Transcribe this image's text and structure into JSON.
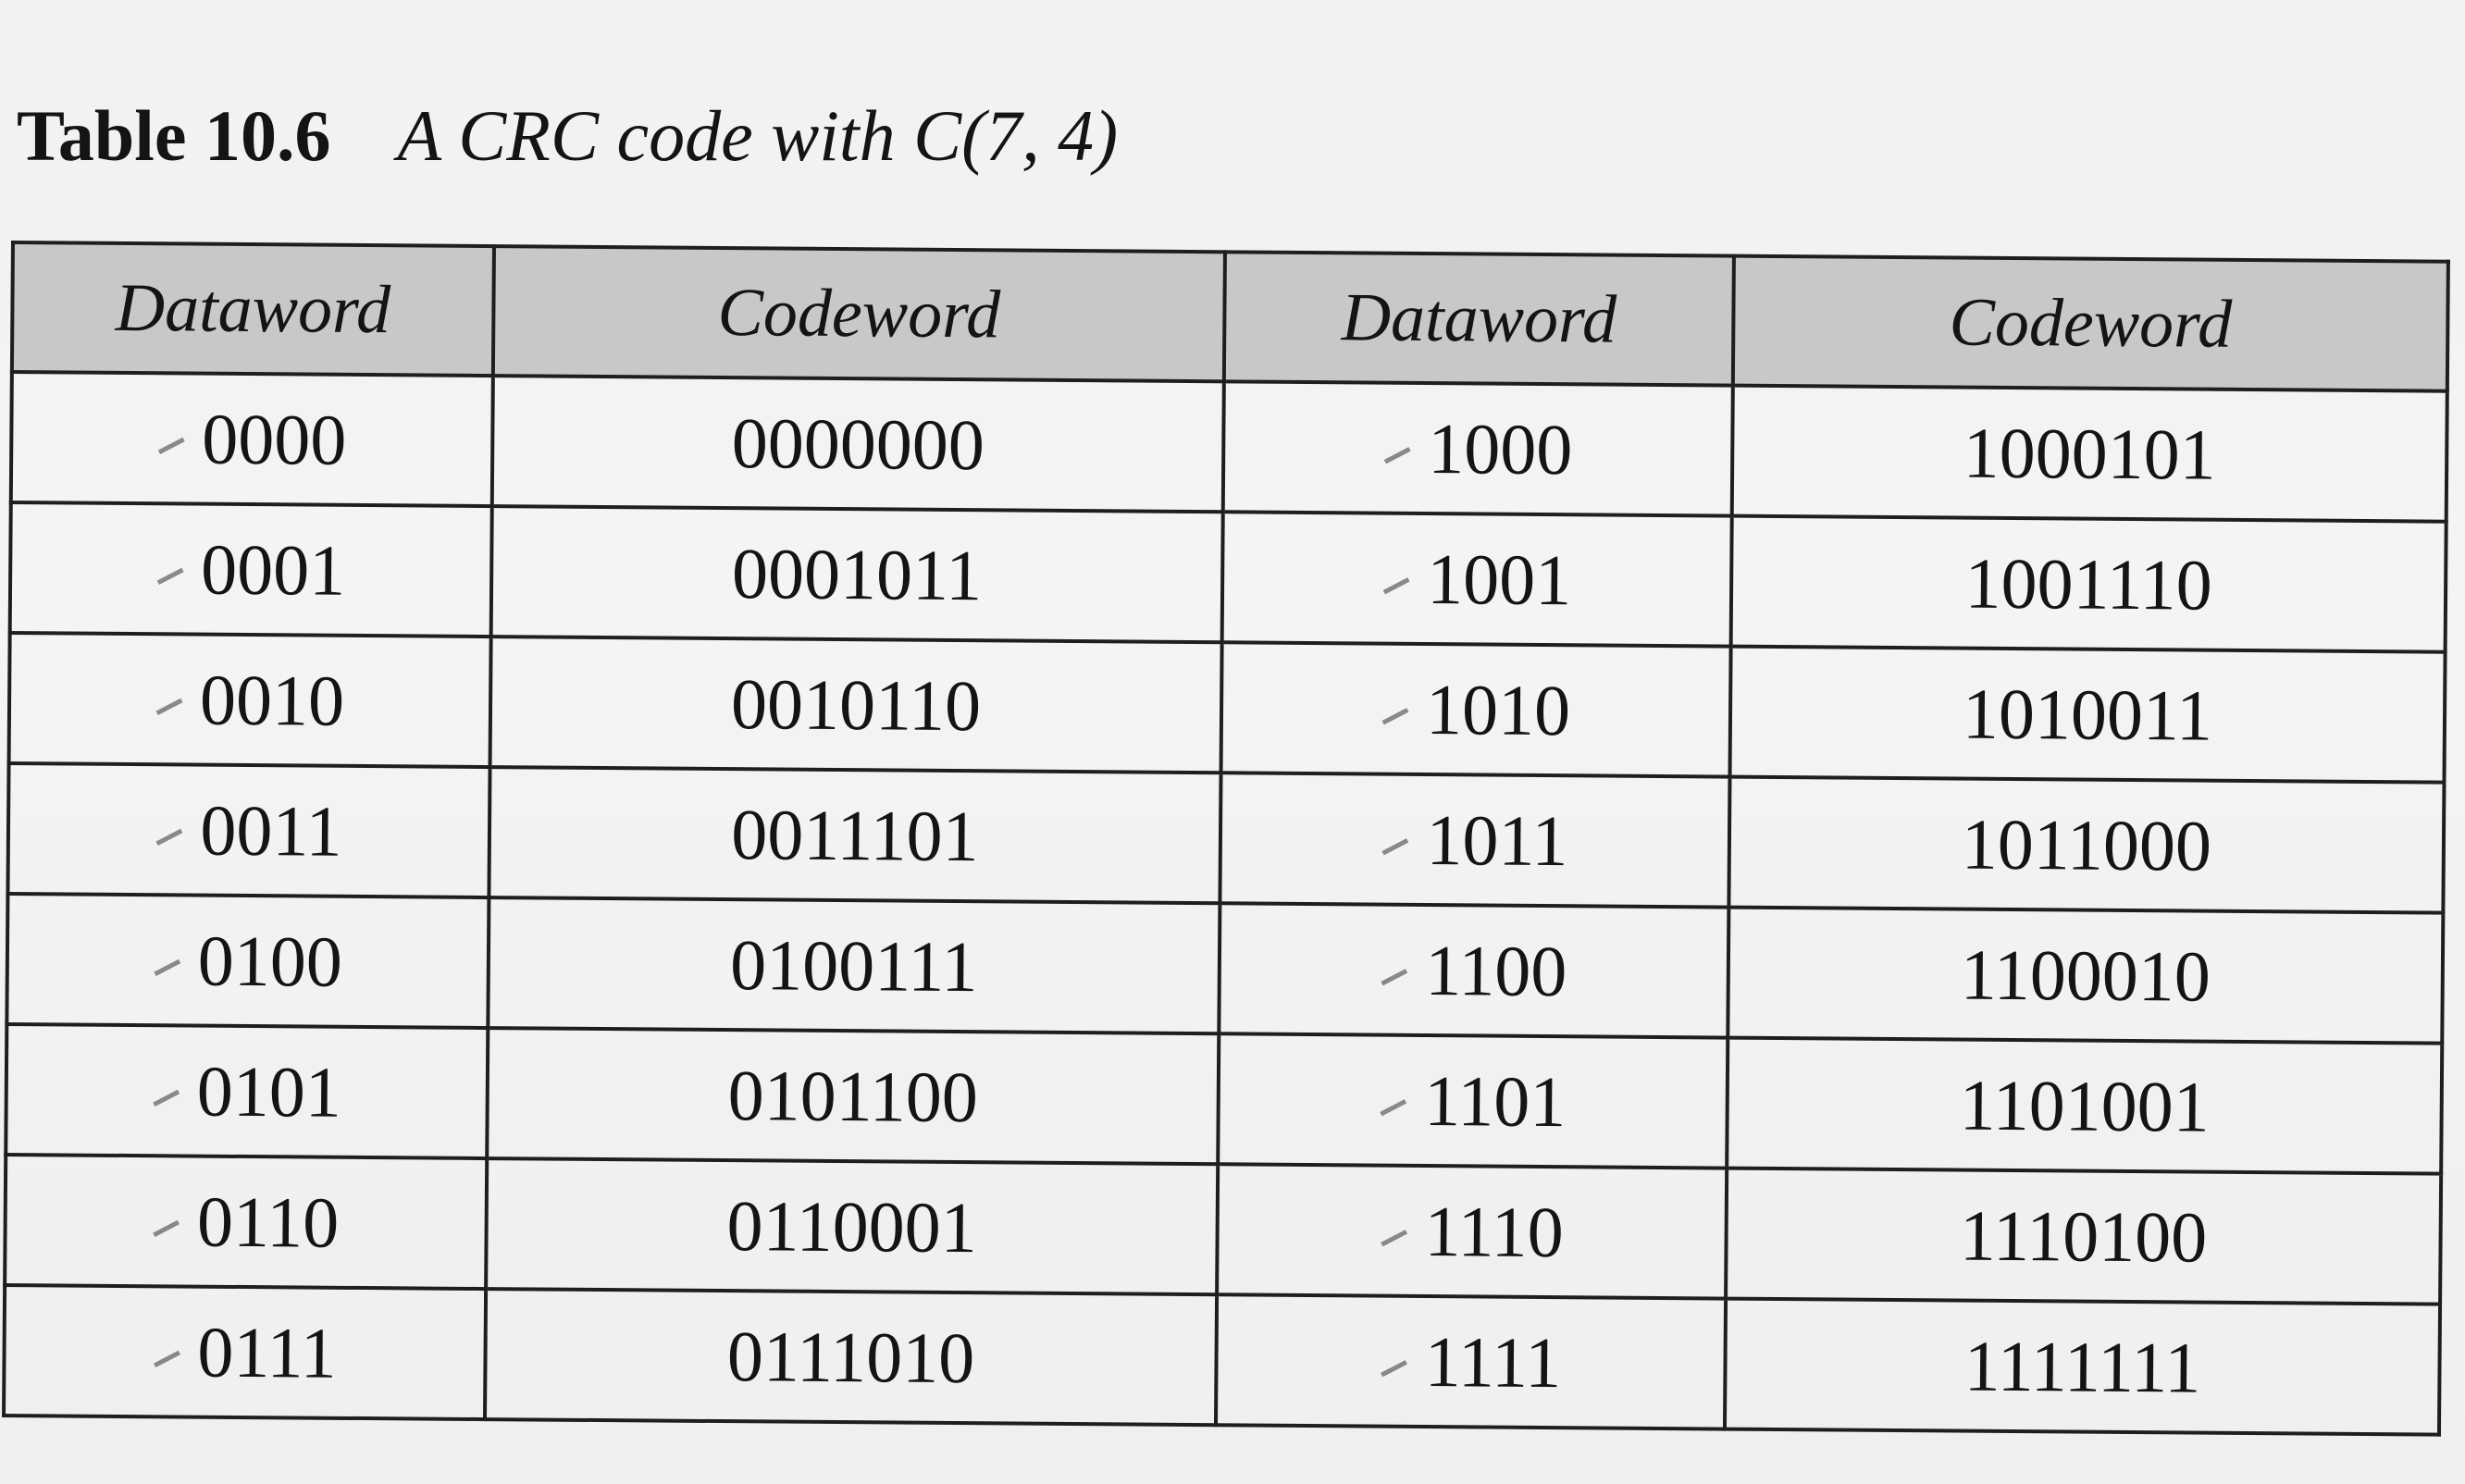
{
  "caption": {
    "label": "Table 10.6",
    "title": "A CRC code with C(7, 4)"
  },
  "table": {
    "headers": [
      "Dataword",
      "Codeword",
      "Dataword",
      "Codeword"
    ],
    "rows": [
      [
        "0000",
        "0000000",
        "1000",
        "1000101"
      ],
      [
        "0001",
        "0001011",
        "1001",
        "1001110"
      ],
      [
        "0010",
        "0010110",
        "1010",
        "1010011"
      ],
      [
        "0011",
        "0011101",
        "1011",
        "1011000"
      ],
      [
        "0100",
        "0100111",
        "1100",
        "1100010"
      ],
      [
        "0101",
        "0101100",
        "1101",
        "1101001"
      ],
      [
        "0110",
        "0110001",
        "1110",
        "1110100"
      ],
      [
        "0111",
        "0111010",
        "1111",
        "1111111"
      ]
    ]
  }
}
